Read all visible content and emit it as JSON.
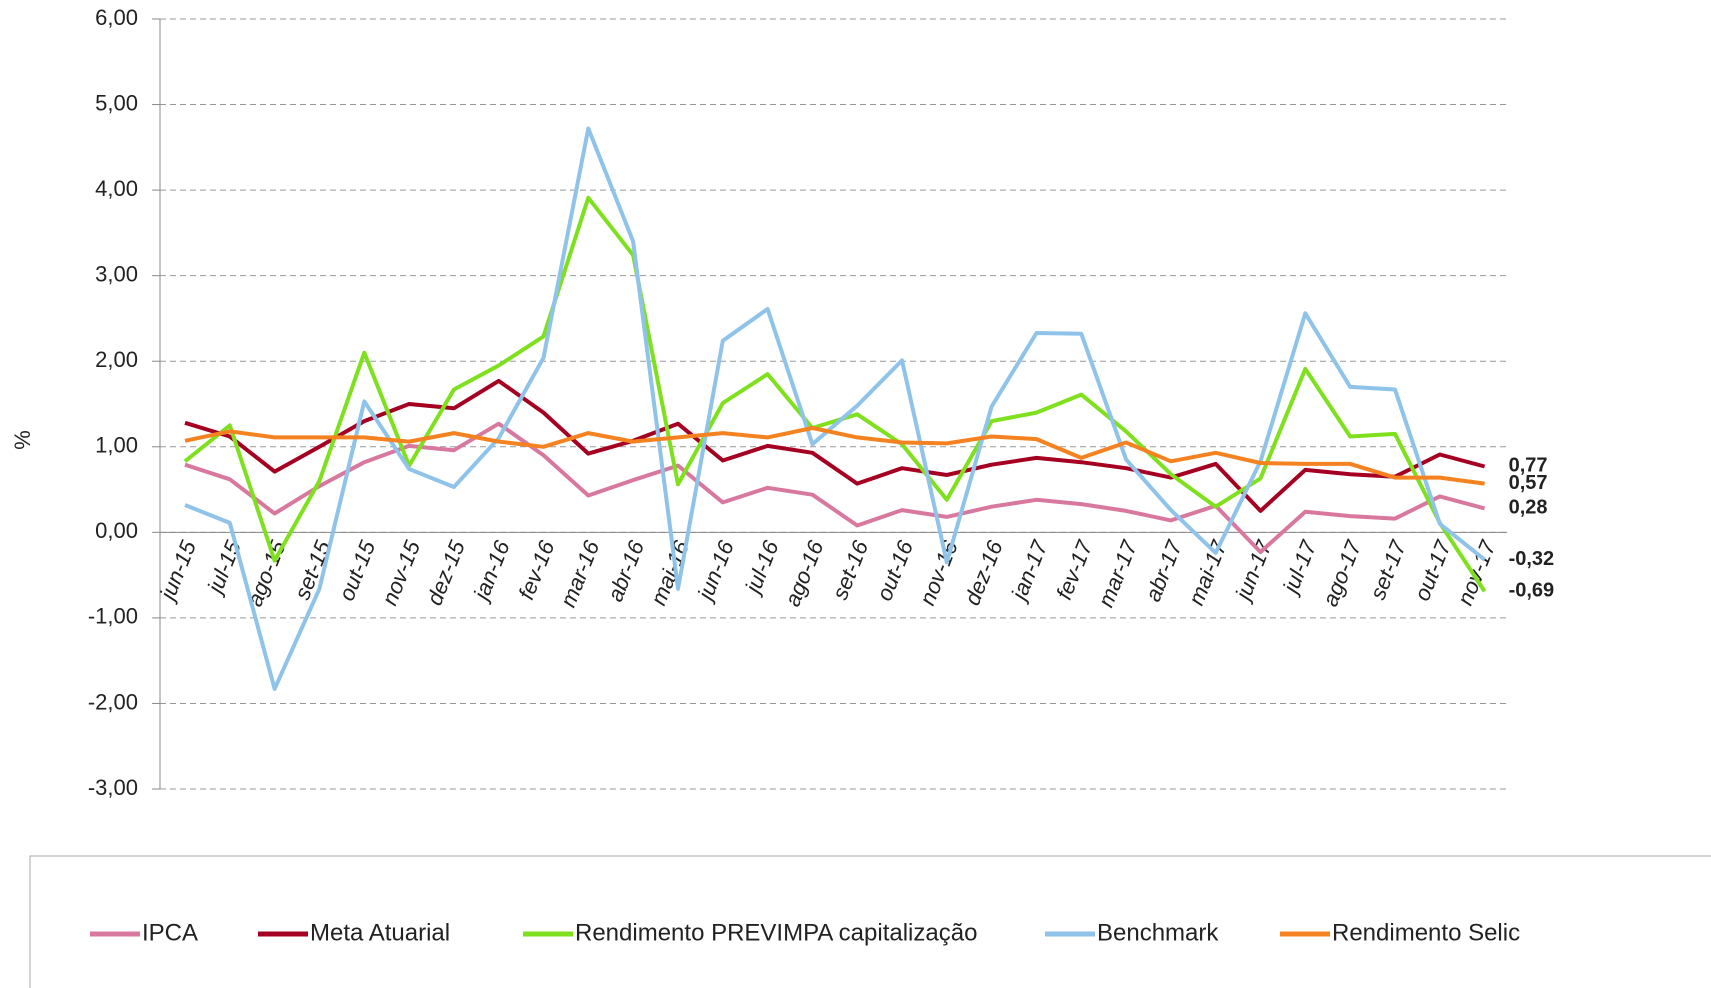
{
  "chart_data": {
    "type": "line",
    "y_label": "%",
    "categories": [
      "jun-15",
      "jul-15",
      "ago-15",
      "set-15",
      "out-15",
      "nov-15",
      "dez-15",
      "jan-16",
      "fev-16",
      "mar-16",
      "abr-16",
      "mai-16",
      "jun-16",
      "jul-16",
      "ago-16",
      "set-16",
      "out-16",
      "nov-16",
      "dez-16",
      "jan-17",
      "fev-17",
      "mar-17",
      "abr-17",
      "mai-17",
      "jun-17",
      "jul-17",
      "ago-17",
      "set-17",
      "out-17",
      "nov-17"
    ],
    "series": [
      {
        "name": "IPCA",
        "color": "#d9789e",
        "label_color": "#d9789e",
        "values": [
          0.79,
          0.62,
          0.22,
          0.54,
          0.82,
          1.01,
          0.96,
          1.27,
          0.9,
          0.43,
          0.61,
          0.78,
          0.35,
          0.52,
          0.44,
          0.08,
          0.26,
          0.18,
          0.3,
          0.38,
          0.33,
          0.25,
          0.14,
          0.31,
          -0.23,
          0.24,
          0.19,
          0.16,
          0.42,
          0.28
        ],
        "value_labels": [
          null,
          null,
          null,
          null,
          null,
          null,
          null,
          null,
          null,
          null,
          null,
          null,
          null,
          null,
          null,
          null,
          null,
          null,
          null,
          null,
          null,
          null,
          null,
          null,
          null,
          null,
          null,
          null,
          null,
          "0,28"
        ]
      },
      {
        "name": "Meta Atuarial",
        "color": "#a50021",
        "label_color": "#c00000",
        "values": [
          1.28,
          1.12,
          0.71,
          1.0,
          1.3,
          1.5,
          1.45,
          1.77,
          1.4,
          0.92,
          1.07,
          1.27,
          0.84,
          1.01,
          0.93,
          0.57,
          0.75,
          0.67,
          0.79,
          0.87,
          0.82,
          0.75,
          0.64,
          0.8,
          0.25,
          0.73,
          0.68,
          0.65,
          0.91,
          0.77
        ],
        "value_labels": [
          null,
          null,
          null,
          null,
          null,
          null,
          null,
          null,
          null,
          null,
          null,
          null,
          null,
          null,
          null,
          null,
          null,
          null,
          null,
          null,
          null,
          null,
          null,
          null,
          null,
          null,
          null,
          null,
          null,
          "0,77"
        ]
      },
      {
        "name": "Rendimento PREVIMPA capitalização",
        "color": "#7fe01e",
        "label_color": "#5aa00f",
        "values": [
          0.83,
          1.25,
          -0.33,
          0.6,
          2.1,
          0.78,
          1.67,
          1.95,
          2.29,
          3.91,
          3.24,
          0.56,
          1.51,
          1.85,
          1.22,
          1.38,
          1.03,
          0.38,
          1.3,
          1.4,
          1.61,
          1.18,
          0.68,
          0.3,
          0.63,
          1.91,
          1.12,
          1.15,
          0.11,
          -0.69
        ],
        "value_labels": [
          null,
          null,
          null,
          null,
          null,
          null,
          null,
          null,
          null,
          null,
          null,
          null,
          null,
          null,
          null,
          null,
          null,
          null,
          null,
          null,
          null,
          null,
          null,
          null,
          null,
          null,
          null,
          null,
          null,
          "-0,69"
        ]
      },
      {
        "name": "Benchmark",
        "color": "#8fc3ea",
        "label_color": "#9dd3f0",
        "values": [
          0.32,
          0.11,
          -1.83,
          -0.66,
          1.53,
          0.74,
          0.53,
          1.1,
          2.04,
          4.72,
          3.4,
          -0.66,
          2.24,
          2.61,
          1.03,
          1.48,
          2.01,
          -0.35,
          1.47,
          2.33,
          2.32,
          0.85,
          0.26,
          -0.24,
          0.83,
          2.56,
          1.7,
          1.67,
          0.1,
          -0.32
        ],
        "value_labels": [
          null,
          null,
          null,
          null,
          null,
          null,
          null,
          null,
          null,
          null,
          null,
          null,
          null,
          null,
          null,
          null,
          null,
          null,
          null,
          null,
          null,
          null,
          null,
          null,
          null,
          null,
          null,
          null,
          null,
          "-0,32"
        ]
      },
      {
        "name": "Rendimento Selic",
        "color": "#f58220",
        "label_color": "#e96c1f",
        "values": [
          1.07,
          1.18,
          1.11,
          1.11,
          1.11,
          1.06,
          1.16,
          1.06,
          1.0,
          1.16,
          1.06,
          1.11,
          1.16,
          1.11,
          1.22,
          1.11,
          1.05,
          1.04,
          1.12,
          1.09,
          0.87,
          1.05,
          0.83,
          0.93,
          0.81,
          0.8,
          0.8,
          0.64,
          0.64,
          0.57
        ],
        "value_labels": [
          null,
          null,
          null,
          null,
          null,
          null,
          null,
          null,
          null,
          null,
          null,
          null,
          null,
          null,
          null,
          null,
          null,
          null,
          null,
          null,
          null,
          null,
          null,
          null,
          null,
          null,
          null,
          null,
          null,
          "0,57"
        ]
      }
    ],
    "ylim": [
      -3,
      6
    ],
    "yticks": [
      {
        "value": -3,
        "label": "-3,00"
      },
      {
        "value": -2,
        "label": "-2,00"
      },
      {
        "value": -1,
        "label": "-1,00"
      },
      {
        "value": 0,
        "label": "0,00"
      },
      {
        "value": 1,
        "label": "1,00"
      },
      {
        "value": 2,
        "label": "2,00"
      },
      {
        "value": 3,
        "label": "3,00"
      },
      {
        "value": 4,
        "label": "4,00"
      },
      {
        "value": 5,
        "label": "5,00"
      },
      {
        "value": 6,
        "label": "6,00"
      }
    ],
    "grid": true,
    "legend": "bottom"
  }
}
